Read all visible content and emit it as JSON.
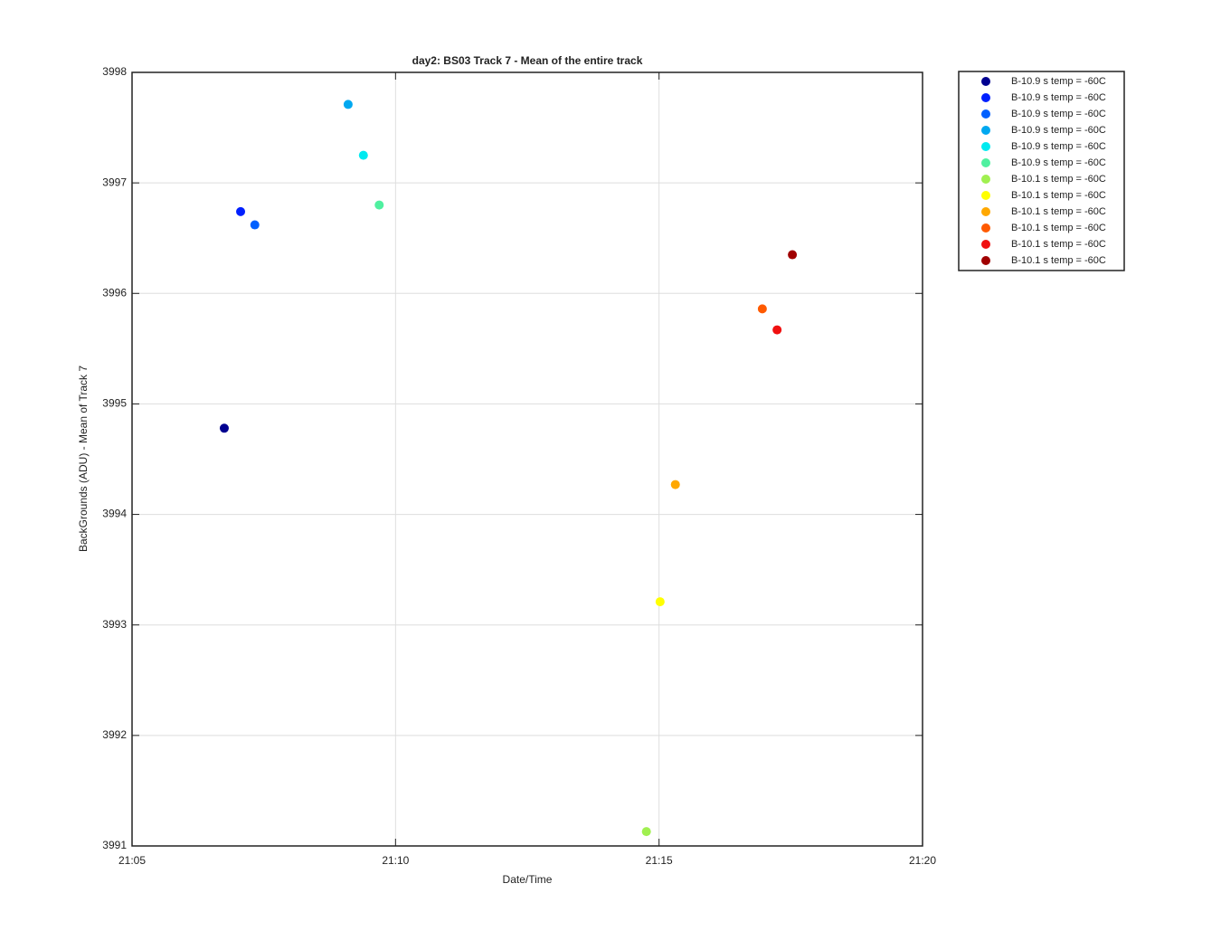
{
  "chart_data": {
    "type": "scatter",
    "title": "day2: BS03  Track 7 - Mean of the entire track",
    "xlabel": "Date/Time",
    "ylabel": "BackGrounds (ADU) - Mean of Track 7",
    "xlim": [
      1265,
      1280
    ],
    "xticks": [
      {
        "value": 1265,
        "label": "21:05"
      },
      {
        "value": 1270,
        "label": "21:10"
      },
      {
        "value": 1275,
        "label": "21:15"
      },
      {
        "value": 1280,
        "label": "21:20"
      }
    ],
    "ylim": [
      3991,
      3998
    ],
    "yticks": [
      3991,
      3992,
      3993,
      3994,
      3995,
      3996,
      3997,
      3998
    ],
    "grid": true,
    "legend": "outside-right",
    "series": [
      {
        "name": "B-10.9 s temp = -60C",
        "color": "#000090",
        "x": [
          1266.75
        ],
        "values": [
          3994.78
        ]
      },
      {
        "name": "B-10.9 s temp = -60C",
        "color": "#0020ff",
        "x": [
          1267.06
        ],
        "values": [
          3996.74
        ]
      },
      {
        "name": "B-10.9 s temp = -60C",
        "color": "#0060ff",
        "x": [
          1267.33
        ],
        "values": [
          3996.62
        ]
      },
      {
        "name": "B-10.9 s temp = -60C",
        "color": "#00a8f0",
        "x": [
          1269.1
        ],
        "values": [
          3997.71
        ]
      },
      {
        "name": "B-10.9 s temp = -60C",
        "color": "#00eaf0",
        "x": [
          1269.39
        ],
        "values": [
          3997.25
        ]
      },
      {
        "name": "B-10.9 s temp = -60C",
        "color": "#50f0a0",
        "x": [
          1269.69
        ],
        "values": [
          3996.8
        ]
      },
      {
        "name": "B-10.1 s temp = -60C",
        "color": "#a0f050",
        "x": [
          1274.76
        ],
        "values": [
          3991.13
        ]
      },
      {
        "name": "B-10.1 s temp = -60C",
        "color": "#ffff00",
        "x": [
          1275.02
        ],
        "values": [
          3993.21
        ]
      },
      {
        "name": "B-10.1 s temp = -60C",
        "color": "#ffa800",
        "x": [
          1275.31
        ],
        "values": [
          3994.27
        ]
      },
      {
        "name": "B-10.1 s temp = -60C",
        "color": "#ff5a00",
        "x": [
          1276.96
        ],
        "values": [
          3995.86
        ]
      },
      {
        "name": "B-10.1 s temp = -60C",
        "color": "#f01010",
        "x": [
          1277.24
        ],
        "values": [
          3995.67
        ]
      },
      {
        "name": "B-10.1 s temp = -60C",
        "color": "#a00000",
        "x": [
          1277.53
        ],
        "values": [
          3996.35
        ]
      }
    ]
  }
}
